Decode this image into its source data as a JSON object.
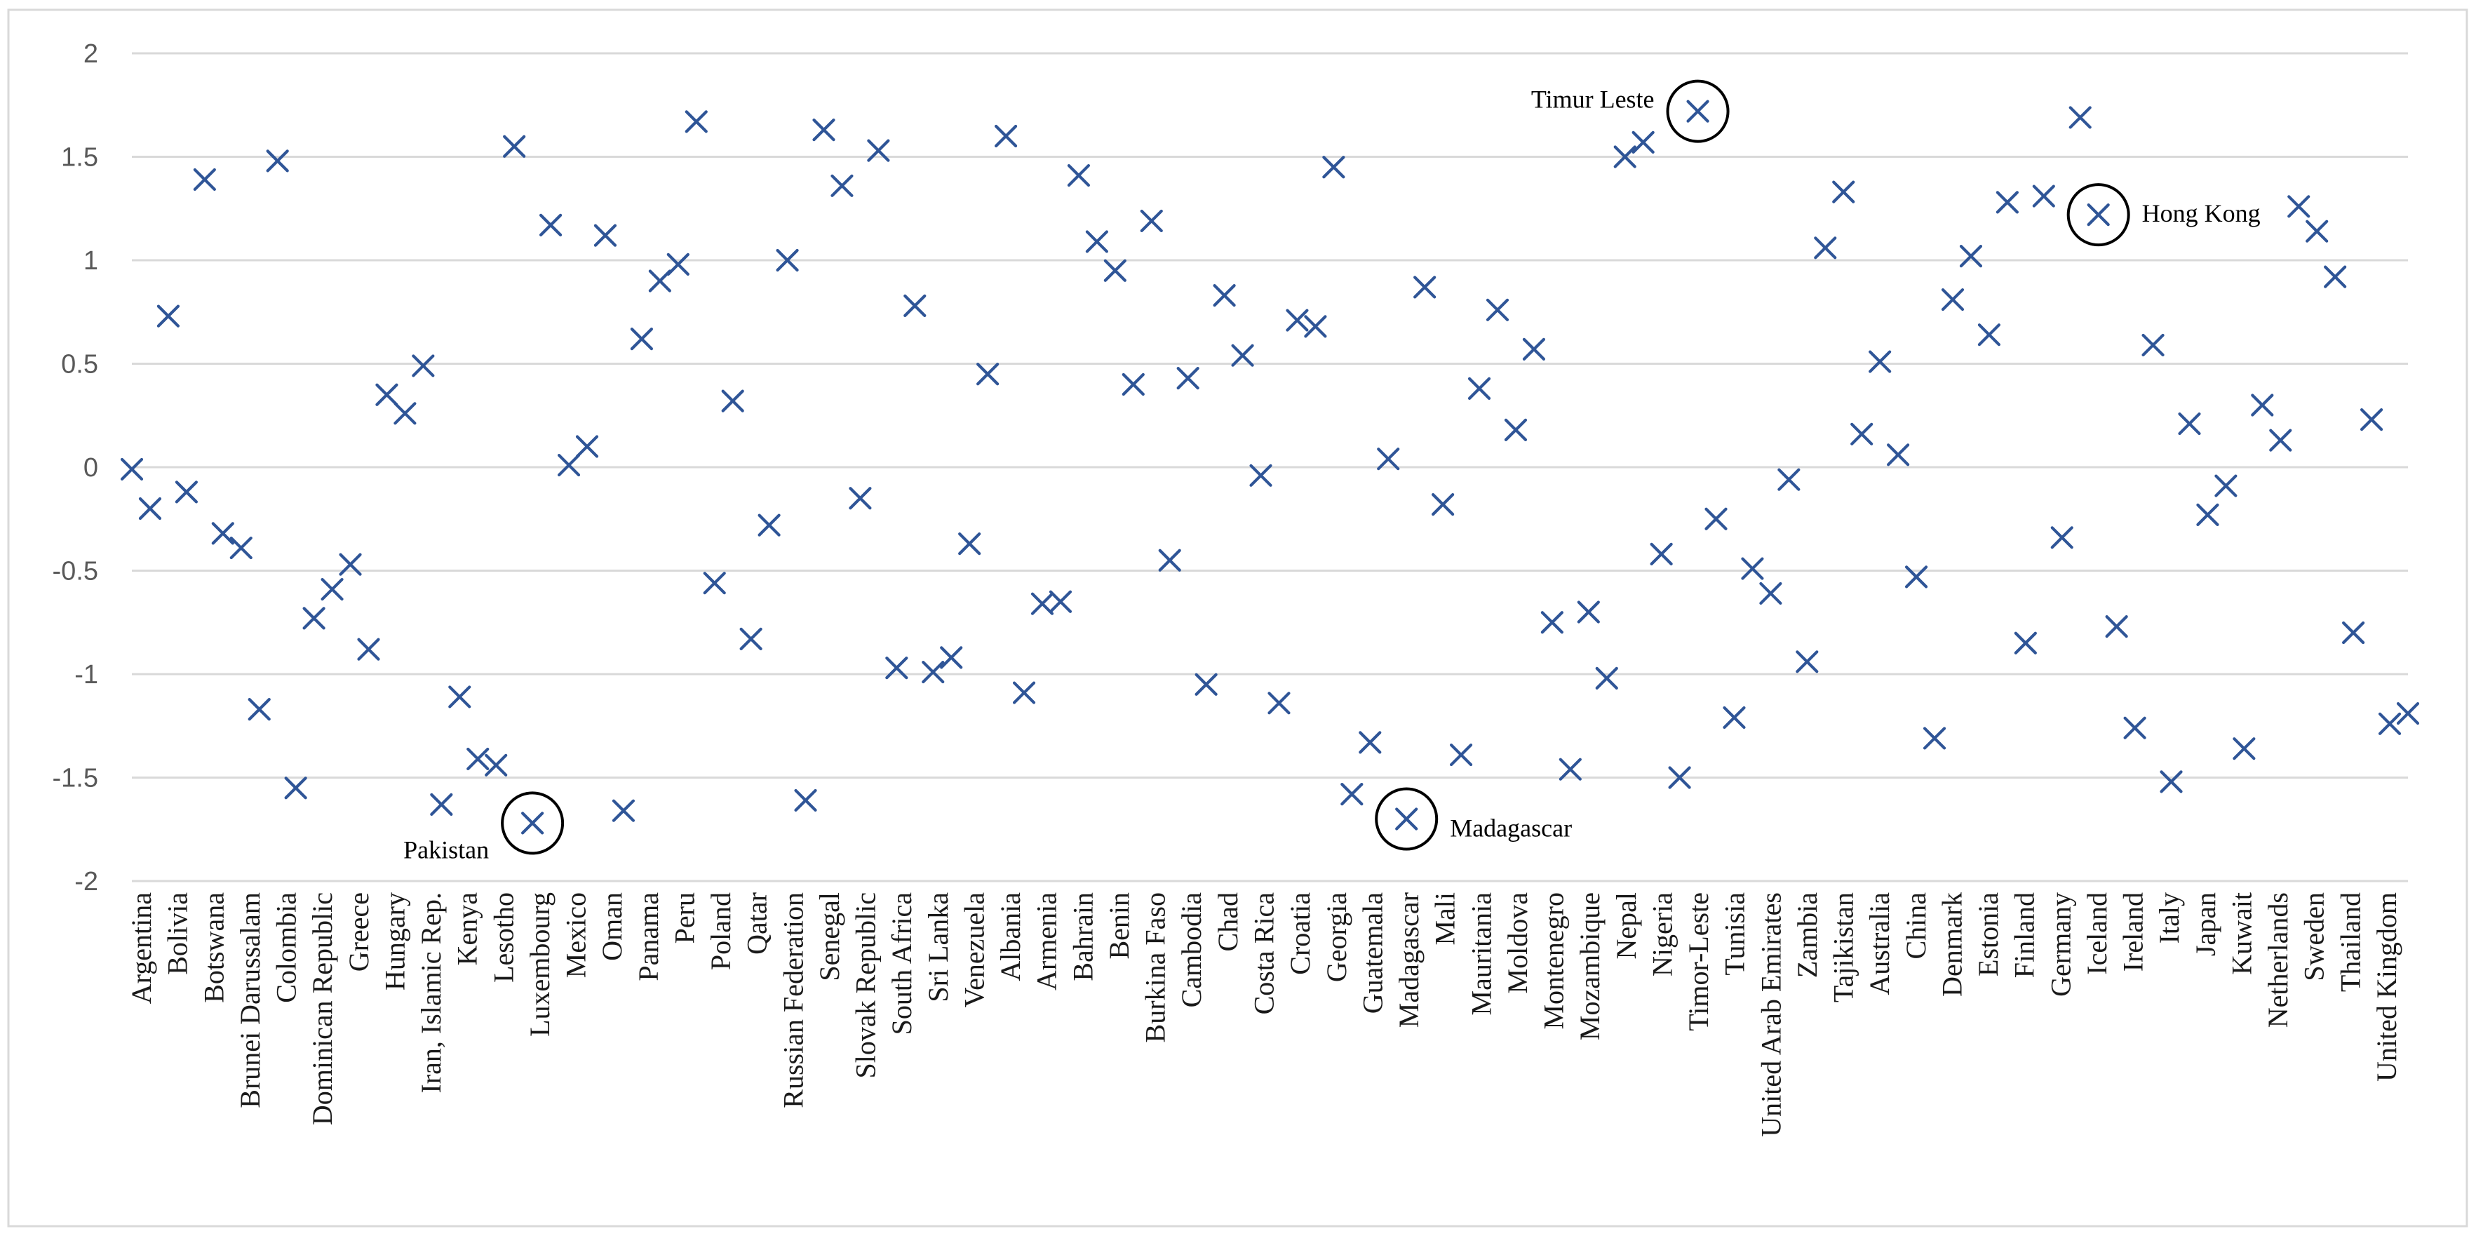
{
  "chart_data": {
    "type": "scatter",
    "title": "",
    "xlabel": "",
    "ylabel": "",
    "ylim": [
      -2,
      2
    ],
    "yticks": [
      2,
      1.5,
      1,
      0.5,
      0,
      -0.5,
      -1,
      -1.5,
      -2
    ],
    "ytick_labels": [
      "2",
      "1.5",
      "1",
      "0.5",
      "0",
      "-0.5",
      "-1",
      "-1.5",
      "-2"
    ],
    "grid": true,
    "marker": "x",
    "marker_color": "#2f5597",
    "categories": [
      "Argentina",
      "Bolivia",
      "Botswana",
      "Brunei Darussalam",
      "Colombia",
      "Dominican Republic",
      "Greece",
      "Hungary",
      "Iran, Islamic Rep.",
      "Kenya",
      "Lesotho",
      "Luxembourg",
      "Mexico",
      "Oman",
      "Panama",
      "Peru",
      "Poland",
      "Qatar",
      "Russian Federation",
      "Senegal",
      "Slovak Republic",
      "South Africa",
      "Sri Lanka",
      "Venezuela",
      "Albania",
      "Armenia",
      "Bahrain",
      "Benin",
      "Burkina Faso",
      "Cambodia",
      "Chad",
      "Costa Rica",
      "Croatia",
      "Georgia",
      "Guatemala",
      "Madagascar",
      "Mali",
      "Mauritania",
      "Moldova",
      "Montenegro",
      "Mozambique",
      "Nepal",
      "Nigeria",
      "Timor-Leste",
      "Tunisia",
      "United Arab Emirates",
      "Zambia",
      "Tajikistan",
      "Australia",
      "China",
      "Denmark",
      "Estonia",
      "Finland",
      "Germany",
      "Iceland",
      "Ireland",
      "Italy",
      "Japan",
      "Kuwait",
      "Netherlands",
      "Sweden",
      "Thailand",
      "United Kingdom"
    ],
    "values": [
      -0.01,
      -0.2,
      0.73,
      -0.12,
      1.39,
      -0.32,
      -0.39,
      -1.17,
      1.48,
      -1.55,
      -0.73,
      -0.59,
      -0.47,
      -0.88,
      0.35,
      0.26,
      0.49,
      -1.63,
      -1.11,
      -1.41,
      -1.44,
      1.55,
      -1.72,
      1.17,
      0.01,
      0.1,
      1.12,
      -1.66,
      0.62,
      0.9,
      0.98,
      1.67,
      -0.56,
      0.32,
      -0.83,
      -0.28,
      1.0,
      -1.61,
      1.63,
      1.36,
      -0.15,
      1.53,
      -0.97,
      0.78,
      -0.99,
      -0.92,
      -0.37,
      0.45,
      1.6,
      -1.09,
      -0.66,
      -0.65,
      1.41,
      1.09,
      0.95,
      0.4,
      1.19,
      -0.45,
      0.43,
      -1.05,
      0.83,
      0.54,
      -0.04,
      -1.14,
      0.71,
      0.68,
      1.45,
      -1.58,
      -1.33,
      0.04,
      -1.7,
      0.87,
      -0.18,
      -1.39,
      0.38,
      0.76,
      0.18,
      0.57,
      -0.75,
      -1.46,
      -0.7,
      -1.02,
      1.5,
      1.57,
      -0.42,
      -1.5,
      1.72,
      -0.25,
      -1.21,
      -0.49,
      -0.61,
      -0.06,
      -0.94,
      1.06,
      1.33,
      0.16,
      0.51,
      0.06,
      -0.53,
      -1.31,
      0.81,
      1.02,
      0.64,
      1.28,
      -0.85,
      1.31,
      -0.34,
      1.69,
      1.22,
      -0.77,
      -1.26,
      0.59,
      -1.52,
      0.21,
      -0.23,
      -0.09,
      -1.36,
      0.3,
      0.13,
      1.26,
      1.14,
      0.92,
      -0.8,
      0.23,
      -1.24,
      -1.19
    ],
    "annotations": [
      {
        "label": "Pakistan",
        "point_index": 22,
        "text_side": "left"
      },
      {
        "label": "Madagascar",
        "point_index": 70,
        "text_side": "right"
      },
      {
        "label": "Timur Leste",
        "point_index": 86,
        "text_side": "left"
      },
      {
        "label": "Hong Kong",
        "point_index": 108,
        "text_side": "right"
      }
    ]
  }
}
